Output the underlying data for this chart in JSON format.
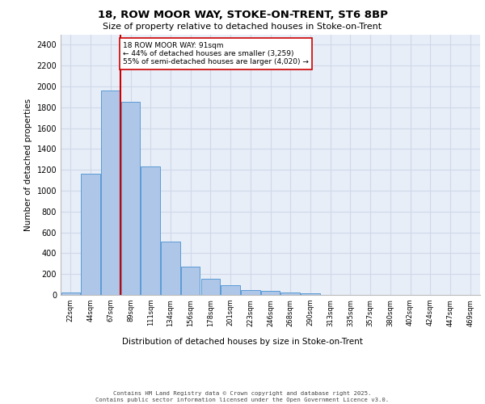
{
  "title1": "18, ROW MOOR WAY, STOKE-ON-TRENT, ST6 8BP",
  "title2": "Size of property relative to detached houses in Stoke-on-Trent",
  "xlabel": "Distribution of detached houses by size in Stoke-on-Trent",
  "ylabel": "Number of detached properties",
  "categories": [
    "22sqm",
    "44sqm",
    "67sqm",
    "89sqm",
    "111sqm",
    "134sqm",
    "156sqm",
    "178sqm",
    "201sqm",
    "223sqm",
    "246sqm",
    "268sqm",
    "290sqm",
    "313sqm",
    "335sqm",
    "357sqm",
    "380sqm",
    "402sqm",
    "424sqm",
    "447sqm",
    "469sqm"
  ],
  "values": [
    25,
    1160,
    1960,
    1850,
    1230,
    510,
    270,
    155,
    90,
    50,
    40,
    20,
    15,
    0,
    0,
    0,
    0,
    0,
    0,
    0,
    0
  ],
  "bar_color": "#aec6e8",
  "bar_edge_color": "#5b9bd5",
  "grid_color": "#d0d8e8",
  "background_color": "#e8eef8",
  "red_line_x": 2.5,
  "annotation_text": "18 ROW MOOR WAY: 91sqm\n← 44% of detached houses are smaller (3,259)\n55% of semi-detached houses are larger (4,020) →",
  "annotation_box_color": "#ffffff",
  "annotation_box_edge": "#cc0000",
  "red_line_color": "#cc0000",
  "footer1": "Contains HM Land Registry data © Crown copyright and database right 2025.",
  "footer2": "Contains public sector information licensed under the Open Government Licence v3.0.",
  "ylim": [
    0,
    2500
  ],
  "yticks": [
    0,
    200,
    400,
    600,
    800,
    1000,
    1200,
    1400,
    1600,
    1800,
    2000,
    2200,
    2400
  ]
}
